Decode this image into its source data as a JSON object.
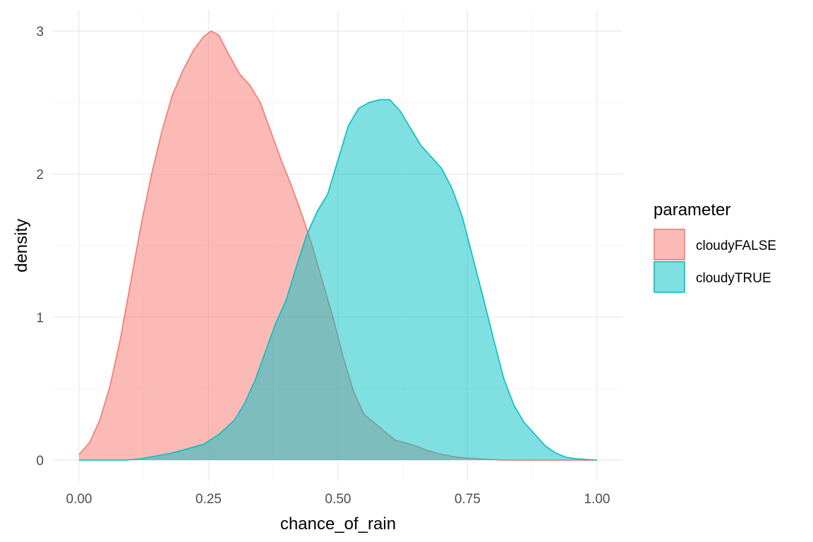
{
  "chart_data": {
    "type": "area",
    "title": "",
    "xlabel": "chance_of_rain",
    "ylabel": "density",
    "xlim": [
      0,
      1
    ],
    "ylim": [
      0,
      3
    ],
    "x_ticks": [
      "0.00",
      "0.25",
      "0.50",
      "0.75",
      "1.00"
    ],
    "y_ticks": [
      "0",
      "1",
      "2",
      "3"
    ],
    "grid": true,
    "legend": {
      "title": "parameter",
      "position": "right"
    },
    "series": [
      {
        "name": "cloudyFALSE",
        "color": "#F8766D",
        "points": [
          [
            0.0,
            0.04
          ],
          [
            0.02,
            0.12
          ],
          [
            0.04,
            0.28
          ],
          [
            0.06,
            0.52
          ],
          [
            0.08,
            0.85
          ],
          [
            0.1,
            1.25
          ],
          [
            0.12,
            1.65
          ],
          [
            0.14,
            2.0
          ],
          [
            0.16,
            2.3
          ],
          [
            0.18,
            2.55
          ],
          [
            0.2,
            2.72
          ],
          [
            0.22,
            2.86
          ],
          [
            0.24,
            2.96
          ],
          [
            0.255,
            3.0
          ],
          [
            0.27,
            2.97
          ],
          [
            0.29,
            2.83
          ],
          [
            0.31,
            2.7
          ],
          [
            0.33,
            2.62
          ],
          [
            0.35,
            2.5
          ],
          [
            0.37,
            2.3
          ],
          [
            0.39,
            2.1
          ],
          [
            0.41,
            1.92
          ],
          [
            0.43,
            1.72
          ],
          [
            0.45,
            1.5
          ],
          [
            0.47,
            1.25
          ],
          [
            0.49,
            1.0
          ],
          [
            0.51,
            0.72
          ],
          [
            0.53,
            0.48
          ],
          [
            0.55,
            0.32
          ],
          [
            0.57,
            0.26
          ],
          [
            0.59,
            0.2
          ],
          [
            0.61,
            0.14
          ],
          [
            0.63,
            0.12
          ],
          [
            0.65,
            0.1
          ],
          [
            0.67,
            0.07
          ],
          [
            0.7,
            0.04
          ],
          [
            0.73,
            0.02
          ],
          [
            0.77,
            0.01
          ],
          [
            0.82,
            0.0
          ],
          [
            1.0,
            0.0
          ]
        ]
      },
      {
        "name": "cloudyTRUE",
        "color": "#00BFC4",
        "points": [
          [
            0.0,
            0.0
          ],
          [
            0.05,
            0.0
          ],
          [
            0.09,
            0.0
          ],
          [
            0.12,
            0.01
          ],
          [
            0.15,
            0.03
          ],
          [
            0.18,
            0.05
          ],
          [
            0.21,
            0.08
          ],
          [
            0.24,
            0.11
          ],
          [
            0.27,
            0.18
          ],
          [
            0.3,
            0.28
          ],
          [
            0.32,
            0.4
          ],
          [
            0.34,
            0.56
          ],
          [
            0.36,
            0.76
          ],
          [
            0.38,
            0.96
          ],
          [
            0.4,
            1.12
          ],
          [
            0.42,
            1.36
          ],
          [
            0.44,
            1.58
          ],
          [
            0.46,
            1.74
          ],
          [
            0.48,
            1.86
          ],
          [
            0.5,
            2.1
          ],
          [
            0.52,
            2.34
          ],
          [
            0.54,
            2.46
          ],
          [
            0.56,
            2.5
          ],
          [
            0.58,
            2.52
          ],
          [
            0.6,
            2.52
          ],
          [
            0.62,
            2.44
          ],
          [
            0.64,
            2.32
          ],
          [
            0.66,
            2.2
          ],
          [
            0.68,
            2.12
          ],
          [
            0.7,
            2.04
          ],
          [
            0.72,
            1.9
          ],
          [
            0.74,
            1.7
          ],
          [
            0.76,
            1.42
          ],
          [
            0.78,
            1.14
          ],
          [
            0.8,
            0.85
          ],
          [
            0.82,
            0.57
          ],
          [
            0.84,
            0.38
          ],
          [
            0.86,
            0.26
          ],
          [
            0.88,
            0.18
          ],
          [
            0.9,
            0.1
          ],
          [
            0.92,
            0.05
          ],
          [
            0.94,
            0.02
          ],
          [
            0.96,
            0.01
          ],
          [
            1.0,
            0.0
          ]
        ]
      }
    ]
  }
}
